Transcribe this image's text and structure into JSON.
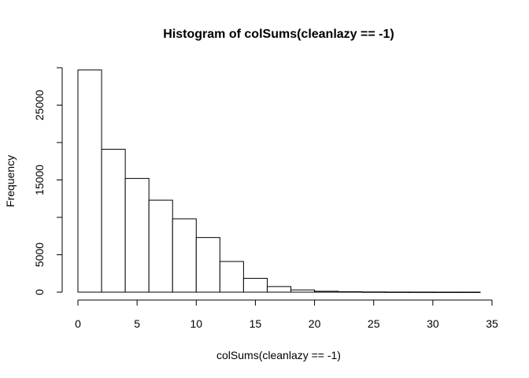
{
  "chart_data": {
    "type": "bar",
    "subtype": "histogram",
    "title": "Histogram of colSums(cleanlazy == -1)",
    "xlabel": "colSums(cleanlazy == -1)",
    "ylabel": "Frequency",
    "bin_edges": [
      0,
      2,
      4,
      6,
      8,
      10,
      12,
      14,
      16,
      18,
      20,
      22,
      24,
      26,
      28,
      30,
      32,
      34
    ],
    "values": [
      29700,
      19100,
      15200,
      12300,
      9800,
      7300,
      4100,
      1850,
      750,
      300,
      120,
      60,
      30,
      15,
      10,
      5,
      5
    ],
    "xlim": [
      0,
      35
    ],
    "ylim": [
      0,
      30000
    ],
    "x_ticks": [
      0,
      5,
      10,
      15,
      20,
      25,
      30,
      35
    ],
    "y_ticks": [
      0,
      5000,
      15000,
      25000
    ],
    "x_tick_labels": [
      "0",
      "5",
      "10",
      "15",
      "20",
      "25",
      "30",
      "35"
    ],
    "y_tick_labels": [
      "0",
      "5000",
      "15000",
      "25000"
    ],
    "grid": false,
    "legend": "none",
    "colors": {
      "bar_fill": "#ffffff",
      "bar_stroke": "#000000"
    }
  }
}
